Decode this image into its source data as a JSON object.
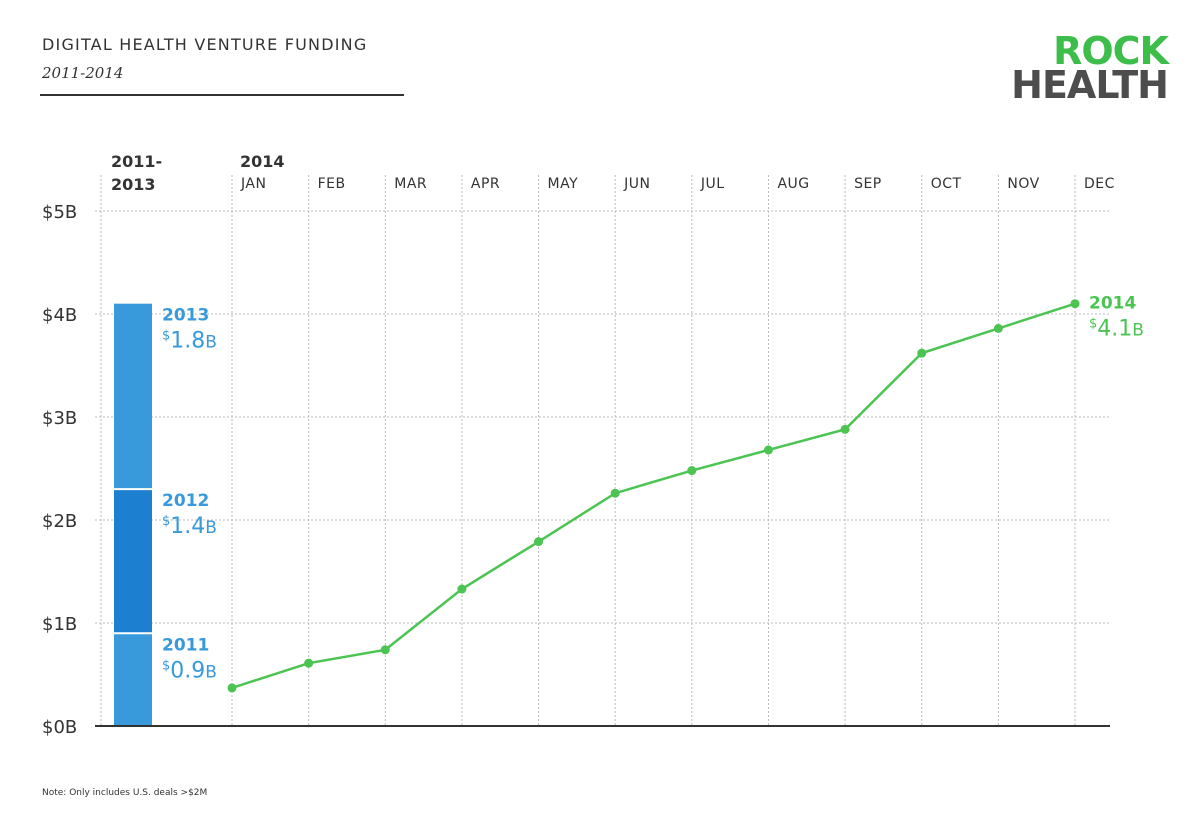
{
  "header": {
    "title": "DIGITAL HEALTH VENTURE FUNDING",
    "subtitle": "2011-2014"
  },
  "logo": {
    "line1": "ROCK",
    "line2": "HEALTH",
    "colors": {
      "primary": "#3dbd4a",
      "secondary": "#4d4d4d"
    }
  },
  "footnote": "Note: Only includes U.S. deals >$2M",
  "chart_data": {
    "type": "line",
    "title": "DIGITAL HEALTH VENTURE FUNDING",
    "subtitle": "2011-2014",
    "y_ticks": [
      "$0B",
      "$1B",
      "$2B",
      "$3B",
      "$4B",
      "$5B"
    ],
    "ylim": [
      0,
      5
    ],
    "grid": true,
    "stack_header": [
      "2011-",
      "2013"
    ],
    "stacked_bar": [
      {
        "year": "2011",
        "value": 0.9,
        "label": "0.9",
        "unit": "B",
        "currency": "$",
        "color": "#3899db"
      },
      {
        "year": "2012",
        "value": 1.4,
        "label": "1.4",
        "unit": "B",
        "currency": "$",
        "color": "#1c7fd0"
      },
      {
        "year": "2013",
        "value": 1.8,
        "label": "1.8",
        "unit": "B",
        "currency": "$",
        "color": "#3899db"
      }
    ],
    "line_header": "2014",
    "categories": [
      "JAN",
      "FEB",
      "MAR",
      "APR",
      "MAY",
      "JUN",
      "JUL",
      "AUG",
      "SEP",
      "OCT",
      "NOV",
      "DEC"
    ],
    "series": [
      {
        "name": "2014",
        "color": "#4cc452",
        "values": [
          0.37,
          0.61,
          0.74,
          1.33,
          1.79,
          2.26,
          2.48,
          2.68,
          2.88,
          3.62,
          3.86,
          4.1
        ],
        "end_label": "2014",
        "end_value_label": "4.1",
        "end_unit": "B",
        "end_currency": "$"
      }
    ],
    "label_color": "#3899db"
  }
}
